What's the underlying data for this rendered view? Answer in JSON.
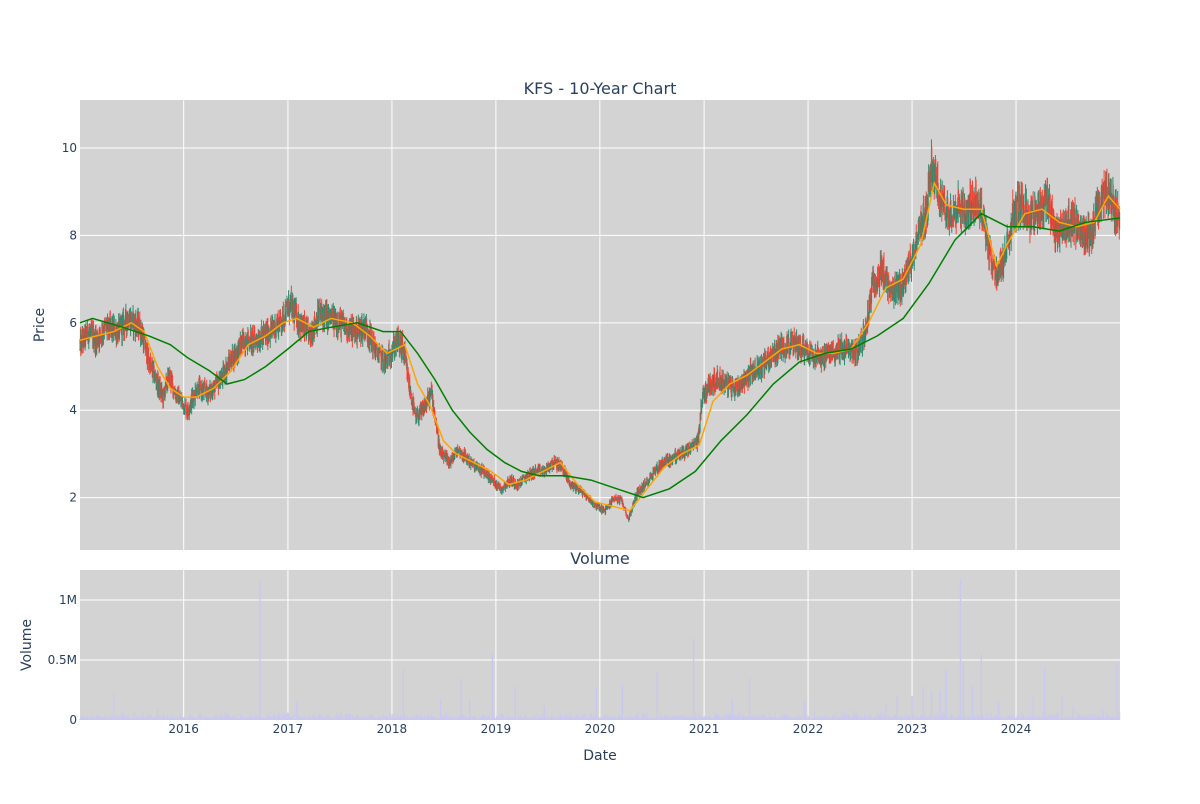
{
  "chart_data": [
    {
      "type": "candlestick",
      "title": "KFS - 10-Year Chart",
      "ylabel": "Price",
      "ylim": [
        0.8,
        11.1
      ],
      "yticks": [
        2,
        4,
        6,
        8,
        10
      ],
      "x_range": [
        "2015-01-02",
        "2024-12-31"
      ],
      "xticks": [
        "2016",
        "2017",
        "2018",
        "2019",
        "2020",
        "2021",
        "2022",
        "2023",
        "2024"
      ],
      "grid": true,
      "up_color": "#2e8b6e",
      "down_color": "#f44336",
      "price_path": [
        [
          "2015-01-02",
          5.5
        ],
        [
          "2015-02-01",
          5.8
        ],
        [
          "2015-03-01",
          5.6
        ],
        [
          "2015-04-01",
          5.9
        ],
        [
          "2015-05-15",
          5.8
        ],
        [
          "2015-06-20",
          6.1
        ],
        [
          "2015-08-01",
          5.9
        ],
        [
          "2015-09-01",
          5.1
        ],
        [
          "2015-10-01",
          4.6
        ],
        [
          "2015-10-20",
          4.3
        ],
        [
          "2015-11-10",
          4.8
        ],
        [
          "2015-12-01",
          4.4
        ],
        [
          "2016-01-15",
          4.0
        ],
        [
          "2016-02-15",
          4.5
        ],
        [
          "2016-04-01",
          4.4
        ],
        [
          "2016-05-10",
          4.7
        ],
        [
          "2016-06-10",
          5.1
        ],
        [
          "2016-08-01",
          5.6
        ],
        [
          "2016-09-10",
          5.6
        ],
        [
          "2016-11-01",
          5.8
        ],
        [
          "2016-12-01",
          6.0
        ],
        [
          "2017-01-10",
          6.4
        ],
        [
          "2017-02-10",
          6.0
        ],
        [
          "2017-03-20",
          5.7
        ],
        [
          "2017-04-20",
          6.2
        ],
        [
          "2017-06-01",
          6.1
        ],
        [
          "2017-07-01",
          6.0
        ],
        [
          "2017-08-20",
          5.8
        ],
        [
          "2017-10-01",
          5.9
        ],
        [
          "2017-11-10",
          5.3
        ],
        [
          "2017-12-10",
          5.1
        ],
        [
          "2018-01-20",
          5.6
        ],
        [
          "2018-02-10",
          5.4
        ],
        [
          "2018-03-01",
          4.6
        ],
        [
          "2018-03-25",
          3.8
        ],
        [
          "2018-04-20",
          4.0
        ],
        [
          "2018-05-20",
          4.4
        ],
        [
          "2018-06-20",
          3.0
        ],
        [
          "2018-07-25",
          2.8
        ],
        [
          "2018-08-20",
          3.1
        ],
        [
          "2018-09-20",
          2.9
        ],
        [
          "2018-10-20",
          2.7
        ],
        [
          "2018-11-20",
          2.6
        ],
        [
          "2018-12-20",
          2.4
        ],
        [
          "2019-01-20",
          2.2
        ],
        [
          "2019-02-20",
          2.4
        ],
        [
          "2019-03-20",
          2.3
        ],
        [
          "2019-04-20",
          2.5
        ],
        [
          "2019-05-20",
          2.6
        ],
        [
          "2019-06-20",
          2.6
        ],
        [
          "2019-07-20",
          2.8
        ],
        [
          "2019-08-20",
          2.7
        ],
        [
          "2019-09-20",
          2.3
        ],
        [
          "2019-10-20",
          2.2
        ],
        [
          "2019-11-20",
          2.0
        ],
        [
          "2019-12-20",
          1.8
        ],
        [
          "2020-01-20",
          1.7
        ],
        [
          "2020-02-20",
          2.0
        ],
        [
          "2020-03-20",
          1.9
        ],
        [
          "2020-04-10",
          1.5
        ],
        [
          "2020-05-10",
          2.1
        ],
        [
          "2020-06-10",
          2.3
        ],
        [
          "2020-07-10",
          2.6
        ],
        [
          "2020-08-10",
          2.8
        ],
        [
          "2020-09-10",
          2.9
        ],
        [
          "2020-10-10",
          3.0
        ],
        [
          "2020-11-10",
          3.1
        ],
        [
          "2020-12-10",
          3.3
        ],
        [
          "2020-12-25",
          4.3
        ],
        [
          "2021-01-20",
          4.6
        ],
        [
          "2021-02-20",
          4.7
        ],
        [
          "2021-03-20",
          4.6
        ],
        [
          "2021-04-20",
          4.5
        ],
        [
          "2021-05-20",
          4.7
        ],
        [
          "2021-06-20",
          4.9
        ],
        [
          "2021-07-20",
          5.0
        ],
        [
          "2021-08-20",
          5.2
        ],
        [
          "2021-09-20",
          5.4
        ],
        [
          "2021-10-20",
          5.5
        ],
        [
          "2021-11-20",
          5.5
        ],
        [
          "2021-12-20",
          5.4
        ],
        [
          "2022-01-20",
          5.3
        ],
        [
          "2022-02-20",
          5.2
        ],
        [
          "2022-03-20",
          5.3
        ],
        [
          "2022-04-20",
          5.4
        ],
        [
          "2022-05-20",
          5.4
        ],
        [
          "2022-06-20",
          5.3
        ],
        [
          "2022-07-20",
          5.8
        ],
        [
          "2022-08-20",
          7.0
        ],
        [
          "2022-09-20",
          7.2
        ],
        [
          "2022-10-20",
          6.6
        ],
        [
          "2022-11-20",
          6.8
        ],
        [
          "2022-12-20",
          7.2
        ],
        [
          "2023-01-20",
          8.0
        ],
        [
          "2023-02-20",
          8.5
        ],
        [
          "2023-03-10",
          9.6
        ],
        [
          "2023-04-10",
          8.8
        ],
        [
          "2023-05-10",
          8.5
        ],
        [
          "2023-06-10",
          8.7
        ],
        [
          "2023-07-10",
          8.5
        ],
        [
          "2023-08-10",
          8.9
        ],
        [
          "2023-09-10",
          8.4
        ],
        [
          "2023-10-01",
          7.6
        ],
        [
          "2023-10-20",
          7.1
        ],
        [
          "2023-11-20",
          7.4
        ],
        [
          "2023-12-20",
          8.5
        ],
        [
          "2024-01-20",
          8.7
        ],
        [
          "2024-02-20",
          8.4
        ],
        [
          "2024-03-20",
          8.6
        ],
        [
          "2024-04-20",
          8.8
        ],
        [
          "2024-05-20",
          8.1
        ],
        [
          "2024-06-20",
          8.2
        ],
        [
          "2024-07-20",
          8.3
        ],
        [
          "2024-08-20",
          8.1
        ],
        [
          "2024-09-20",
          8.0
        ],
        [
          "2024-10-20",
          8.7
        ],
        [
          "2024-11-20",
          9.0
        ],
        [
          "2024-12-20",
          8.5
        ],
        [
          "2024-12-31",
          8.4
        ]
      ],
      "series": [
        {
          "type": "line",
          "color": "#ffa500",
          "values": [
            [
              "2015-01-02",
              5.6
            ],
            [
              "2015-03-01",
              5.7
            ],
            [
              "2015-05-01",
              5.8
            ],
            [
              "2015-07-01",
              6.0
            ],
            [
              "2015-08-15",
              5.8
            ],
            [
              "2015-10-01",
              5.0
            ],
            [
              "2015-11-15",
              4.5
            ],
            [
              "2016-01-01",
              4.3
            ],
            [
              "2016-02-15",
              4.3
            ],
            [
              "2016-04-15",
              4.5
            ],
            [
              "2016-06-15",
              4.9
            ],
            [
              "2016-08-15",
              5.5
            ],
            [
              "2016-10-15",
              5.7
            ],
            [
              "2016-12-15",
              6.0
            ],
            [
              "2017-02-01",
              6.1
            ],
            [
              "2017-04-01",
              5.9
            ],
            [
              "2017-06-01",
              6.1
            ],
            [
              "2017-08-15",
              6.0
            ],
            [
              "2017-10-15",
              5.7
            ],
            [
              "2017-12-15",
              5.3
            ],
            [
              "2018-02-15",
              5.5
            ],
            [
              "2018-04-01",
              4.6
            ],
            [
              "2018-05-15",
              4.1
            ],
            [
              "2018-07-01",
              3.3
            ],
            [
              "2018-08-15",
              3.0
            ],
            [
              "2018-10-15",
              2.8
            ],
            [
              "2018-12-15",
              2.6
            ],
            [
              "2019-02-15",
              2.3
            ],
            [
              "2019-04-15",
              2.4
            ],
            [
              "2019-06-15",
              2.6
            ],
            [
              "2019-08-15",
              2.8
            ],
            [
              "2019-10-15",
              2.3
            ],
            [
              "2019-12-15",
              1.9
            ],
            [
              "2020-02-15",
              1.8
            ],
            [
              "2020-04-15",
              1.7
            ],
            [
              "2020-06-15",
              2.2
            ],
            [
              "2020-08-15",
              2.7
            ],
            [
              "2020-10-15",
              3.0
            ],
            [
              "2020-12-15",
              3.2
            ],
            [
              "2021-02-01",
              4.2
            ],
            [
              "2021-04-01",
              4.6
            ],
            [
              "2021-06-01",
              4.8
            ],
            [
              "2021-08-01",
              5.1
            ],
            [
              "2021-10-01",
              5.4
            ],
            [
              "2021-12-01",
              5.5
            ],
            [
              "2022-02-01",
              5.3
            ],
            [
              "2022-04-01",
              5.3
            ],
            [
              "2022-06-01",
              5.4
            ],
            [
              "2022-08-01",
              6.0
            ],
            [
              "2022-10-01",
              6.8
            ],
            [
              "2022-12-01",
              7.0
            ],
            [
              "2023-02-01",
              7.8
            ],
            [
              "2023-03-20",
              9.2
            ],
            [
              "2023-05-01",
              8.7
            ],
            [
              "2023-07-01",
              8.6
            ],
            [
              "2023-09-01",
              8.6
            ],
            [
              "2023-10-25",
              7.3
            ],
            [
              "2023-12-01",
              7.8
            ],
            [
              "2024-02-01",
              8.5
            ],
            [
              "2024-04-01",
              8.6
            ],
            [
              "2024-06-01",
              8.3
            ],
            [
              "2024-08-01",
              8.2
            ],
            [
              "2024-10-01",
              8.3
            ],
            [
              "2024-11-20",
              8.9
            ],
            [
              "2024-12-31",
              8.6
            ]
          ]
        },
        {
          "type": "line",
          "color": "#008000",
          "values": [
            [
              "2015-01-02",
              6.0
            ],
            [
              "2015-02-15",
              6.1
            ],
            [
              "2015-06-01",
              5.9
            ],
            [
              "2015-09-01",
              5.7
            ],
            [
              "2015-11-15",
              5.5
            ],
            [
              "2016-01-15",
              5.2
            ],
            [
              "2016-04-01",
              4.9
            ],
            [
              "2016-06-01",
              4.6
            ],
            [
              "2016-08-01",
              4.7
            ],
            [
              "2016-10-15",
              5.0
            ],
            [
              "2017-01-01",
              5.4
            ],
            [
              "2017-03-15",
              5.8
            ],
            [
              "2017-06-01",
              5.9
            ],
            [
              "2017-09-01",
              6.0
            ],
            [
              "2017-12-01",
              5.8
            ],
            [
              "2018-02-01",
              5.8
            ],
            [
              "2018-04-01",
              5.3
            ],
            [
              "2018-06-01",
              4.7
            ],
            [
              "2018-08-01",
              4.0
            ],
            [
              "2018-10-01",
              3.5
            ],
            [
              "2018-12-01",
              3.1
            ],
            [
              "2019-02-01",
              2.8
            ],
            [
              "2019-04-01",
              2.6
            ],
            [
              "2019-06-01",
              2.5
            ],
            [
              "2019-09-01",
              2.5
            ],
            [
              "2019-12-01",
              2.4
            ],
            [
              "2020-03-01",
              2.2
            ],
            [
              "2020-06-01",
              2.0
            ],
            [
              "2020-09-01",
              2.2
            ],
            [
              "2020-12-01",
              2.6
            ],
            [
              "2021-03-01",
              3.3
            ],
            [
              "2021-06-01",
              3.9
            ],
            [
              "2021-09-01",
              4.6
            ],
            [
              "2021-12-01",
              5.1
            ],
            [
              "2022-03-01",
              5.3
            ],
            [
              "2022-06-01",
              5.4
            ],
            [
              "2022-09-01",
              5.7
            ],
            [
              "2022-12-01",
              6.1
            ],
            [
              "2023-03-01",
              6.9
            ],
            [
              "2023-06-01",
              7.9
            ],
            [
              "2023-09-01",
              8.5
            ],
            [
              "2023-12-01",
              8.2
            ],
            [
              "2024-03-01",
              8.2
            ],
            [
              "2024-06-01",
              8.1
            ],
            [
              "2024-09-01",
              8.3
            ],
            [
              "2024-12-31",
              8.4
            ]
          ]
        }
      ]
    },
    {
      "type": "bar",
      "title": "Volume",
      "xlabel": "Date",
      "ylabel": "Volume",
      "ylim": [
        0,
        1250000
      ],
      "yticks": [
        "0",
        "0.5M",
        "1M"
      ],
      "bar_color": "#c9c9f0",
      "spikes": [
        [
          "2015-05-01",
          220000
        ],
        [
          "2015-10-01",
          90000
        ],
        [
          "2016-06-01",
          60000
        ],
        [
          "2016-09-25",
          1150000
        ],
        [
          "2017-02-01",
          150000
        ],
        [
          "2018-02-10",
          420000
        ],
        [
          "2018-06-20",
          180000
        ],
        [
          "2018-09-01",
          350000
        ],
        [
          "2018-10-01",
          180000
        ],
        [
          "2018-12-20",
          550000
        ],
        [
          "2019-03-10",
          280000
        ],
        [
          "2019-06-20",
          120000
        ],
        [
          "2019-12-20",
          270000
        ],
        [
          "2020-03-20",
          300000
        ],
        [
          "2020-07-20",
          400000
        ],
        [
          "2020-11-25",
          680000
        ],
        [
          "2021-04-10",
          180000
        ],
        [
          "2021-06-10",
          350000
        ],
        [
          "2021-12-20",
          160000
        ],
        [
          "2022-06-10",
          80000
        ],
        [
          "2022-10-01",
          140000
        ],
        [
          "2022-11-10",
          200000
        ],
        [
          "2023-01-01",
          200000
        ],
        [
          "2023-02-10",
          280000
        ],
        [
          "2023-03-10",
          240000
        ],
        [
          "2023-04-10",
          250000
        ],
        [
          "2023-05-01",
          420000
        ],
        [
          "2023-06-20",
          1180000
        ],
        [
          "2023-07-01",
          490000
        ],
        [
          "2023-08-01",
          280000
        ],
        [
          "2023-09-01",
          550000
        ],
        [
          "2023-11-01",
          150000
        ],
        [
          "2024-03-01",
          200000
        ],
        [
          "2024-04-10",
          440000
        ],
        [
          "2024-06-10",
          200000
        ],
        [
          "2024-07-20",
          120000
        ],
        [
          "2024-11-01",
          80000
        ],
        [
          "2024-12-20",
          480000
        ]
      ]
    }
  ]
}
